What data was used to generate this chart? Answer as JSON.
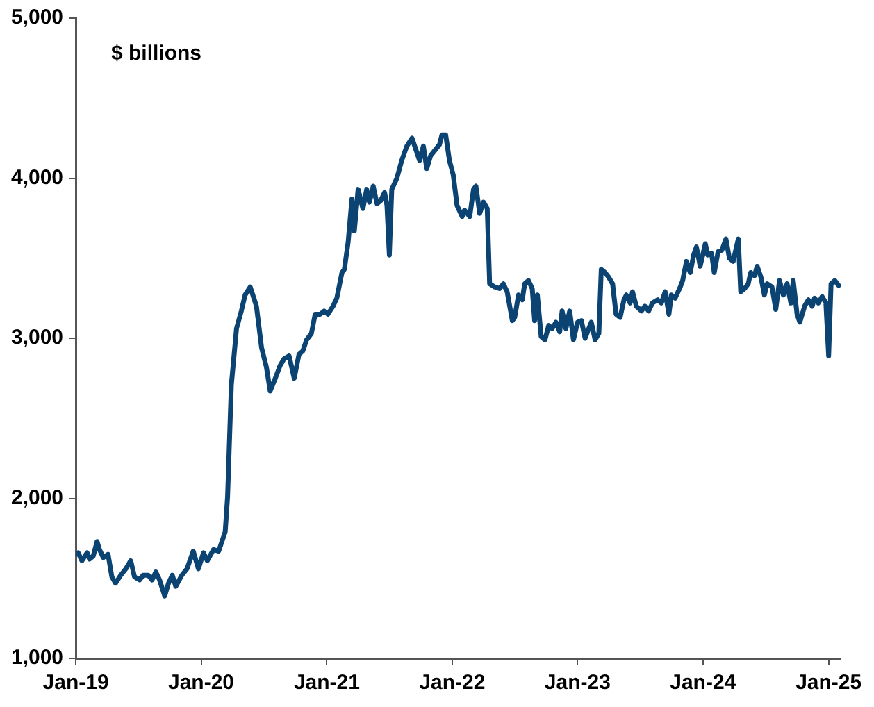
{
  "chart_data": {
    "type": "line",
    "annotations": [
      "$ billions"
    ],
    "x": [
      "2019-01-01",
      "2019-01-08",
      "2019-01-19",
      "2019-02-03",
      "2019-02-10",
      "2019-02-21",
      "2019-03-04",
      "2019-03-11",
      "2019-03-22",
      "2019-04-05",
      "2019-04-16",
      "2019-04-27",
      "2019-05-12",
      "2019-05-27",
      "2019-06-10",
      "2019-06-21",
      "2019-07-06",
      "2019-07-16",
      "2019-07-31",
      "2019-08-11",
      "2019-08-22",
      "2019-09-02",
      "2019-09-17",
      "2019-09-28",
      "2019-10-09",
      "2019-10-19",
      "2019-11-06",
      "2019-11-21",
      "2019-12-09",
      "2019-12-24",
      "2020-01-08",
      "2020-01-19",
      "2020-02-06",
      "2020-02-21",
      "2020-03-11",
      "2020-03-18",
      "2020-03-29",
      "2020-04-13",
      "2020-04-27",
      "2020-05-08",
      "2020-05-23",
      "2020-06-10",
      "2020-06-25",
      "2020-07-09",
      "2020-07-20",
      "2020-08-04",
      "2020-08-18",
      "2020-08-29",
      "2020-09-13",
      "2020-09-28",
      "2020-10-12",
      "2020-10-23",
      "2020-11-03",
      "2020-11-17",
      "2020-11-28",
      "2020-12-13",
      "2020-12-24",
      "2021-01-04",
      "2021-01-19",
      "2021-01-30",
      "2021-02-14",
      "2021-02-21",
      "2021-03-04",
      "2021-03-15",
      "2021-03-22",
      "2021-04-02",
      "2021-04-16",
      "2021-04-27",
      "2021-05-05",
      "2021-05-16",
      "2021-05-27",
      "2021-06-07",
      "2021-06-18",
      "2021-06-25",
      "2021-07-02",
      "2021-07-09",
      "2021-07-24",
      "2021-08-07",
      "2021-08-22",
      "2021-09-06",
      "2021-09-17",
      "2021-09-28",
      "2021-10-09",
      "2021-10-19",
      "2021-10-30",
      "2021-11-14",
      "2021-11-25",
      "2021-12-02",
      "2021-12-13",
      "2021-12-24",
      "2022-01-04",
      "2022-01-15",
      "2022-01-30",
      "2022-02-06",
      "2022-02-21",
      "2022-03-04",
      "2022-03-11",
      "2022-03-22",
      "2022-04-02",
      "2022-04-13",
      "2022-04-20",
      "2022-05-05",
      "2022-05-19",
      "2022-05-30",
      "2022-06-10",
      "2022-06-25",
      "2022-07-02",
      "2022-07-13",
      "2022-07-24",
      "2022-07-31",
      "2022-08-11",
      "2022-08-22",
      "2022-08-29",
      "2022-09-06",
      "2022-09-17",
      "2022-09-28",
      "2022-10-09",
      "2022-10-19",
      "2022-10-30",
      "2022-11-10",
      "2022-11-17",
      "2022-11-28",
      "2022-12-09",
      "2022-12-20",
      "2023-01-01",
      "2023-01-12",
      "2023-01-23",
      "2023-01-30",
      "2023-02-10",
      "2023-02-21",
      "2023-03-04",
      "2023-03-11",
      "2023-03-22",
      "2023-04-02",
      "2023-04-13",
      "2023-04-23",
      "2023-05-05",
      "2023-05-16",
      "2023-05-23",
      "2023-06-03",
      "2023-06-10",
      "2023-06-21",
      "2023-07-06",
      "2023-07-16",
      "2023-07-27",
      "2023-08-07",
      "2023-08-22",
      "2023-09-02",
      "2023-09-13",
      "2023-09-24",
      "2023-10-01",
      "2023-10-12",
      "2023-10-27",
      "2023-11-03",
      "2023-11-14",
      "2023-11-25",
      "2023-12-05",
      "2023-12-13",
      "2023-12-24",
      "2024-01-08",
      "2024-01-15",
      "2024-01-26",
      "2024-02-03",
      "2024-02-14",
      "2024-02-25",
      "2024-03-08",
      "2024-03-18",
      "2024-03-29",
      "2024-04-13",
      "2024-04-20",
      "2024-05-01",
      "2024-05-12",
      "2024-05-19",
      "2024-05-30",
      "2024-06-07",
      "2024-06-18",
      "2024-06-28",
      "2024-07-06",
      "2024-07-20",
      "2024-07-31",
      "2024-08-11",
      "2024-08-22",
      "2024-09-02",
      "2024-09-13",
      "2024-09-20",
      "2024-10-01",
      "2024-10-09",
      "2024-10-23",
      "2024-11-03",
      "2024-11-14",
      "2024-11-21",
      "2024-12-02",
      "2024-12-13",
      "2024-12-24",
      "2025-01-01",
      "2025-01-08",
      "2025-01-19",
      "2025-01-30"
    ],
    "series": [
      {
        "color": "#0b4372",
        "values": [
          1650,
          1660,
          1610,
          1660,
          1620,
          1640,
          1730,
          1680,
          1630,
          1650,
          1510,
          1470,
          1520,
          1560,
          1610,
          1510,
          1490,
          1520,
          1520,
          1490,
          1540,
          1490,
          1390,
          1470,
          1520,
          1450,
          1520,
          1560,
          1670,
          1560,
          1660,
          1610,
          1680,
          1670,
          1790,
          2010,
          2710,
          3060,
          3170,
          3270,
          3320,
          3200,
          2940,
          2820,
          2670,
          2750,
          2830,
          2870,
          2890,
          2750,
          2900,
          2920,
          2990,
          3030,
          3150,
          3150,
          3170,
          3150,
          3200,
          3250,
          3410,
          3430,
          3600,
          3870,
          3670,
          3930,
          3810,
          3930,
          3850,
          3950,
          3840,
          3860,
          3910,
          3830,
          3520,
          3930,
          4000,
          4110,
          4200,
          4250,
          4180,
          4110,
          4200,
          4060,
          4140,
          4180,
          4210,
          4270,
          4270,
          4110,
          4020,
          3830,
          3760,
          3800,
          3760,
          3930,
          3950,
          3780,
          3850,
          3810,
          3340,
          3320,
          3310,
          3340,
          3290,
          3110,
          3130,
          3270,
          3240,
          3340,
          3360,
          3310,
          3110,
          3270,
          3010,
          2990,
          3080,
          3060,
          3100,
          3040,
          3170,
          3060,
          3170,
          2990,
          3100,
          3110,
          3000,
          3040,
          3100,
          2990,
          3030,
          3430,
          3410,
          3380,
          3340,
          3150,
          3130,
          3240,
          3270,
          3220,
          3290,
          3200,
          3170,
          3200,
          3170,
          3220,
          3240,
          3220,
          3290,
          3150,
          3270,
          3250,
          3320,
          3360,
          3480,
          3410,
          3520,
          3570,
          3450,
          3590,
          3520,
          3530,
          3410,
          3540,
          3550,
          3620,
          3500,
          3480,
          3620,
          3290,
          3310,
          3340,
          3410,
          3390,
          3450,
          3380,
          3270,
          3340,
          3320,
          3180,
          3360,
          3270,
          3340,
          3220,
          3360,
          3150,
          3100,
          3200,
          3240,
          3200,
          3250,
          3220,
          3260,
          3220,
          2890,
          3340,
          3360,
          3330
        ]
      }
    ],
    "xlim": [
      "2019-01-01",
      "2025-02-05"
    ],
    "xticks": [
      {
        "value": "2019-01",
        "label": "Jan-19"
      },
      {
        "value": "2020-01",
        "label": "Jan-20"
      },
      {
        "value": "2021-01",
        "label": "Jan-21"
      },
      {
        "value": "2022-01",
        "label": "Jan-22"
      },
      {
        "value": "2023-01",
        "label": "Jan-23"
      },
      {
        "value": "2024-01",
        "label": "Jan-24"
      },
      {
        "value": "2025-01",
        "label": "Jan-25"
      }
    ],
    "ylim": [
      1000,
      5000
    ],
    "yticks": [
      {
        "value": 1000,
        "label": "1,000"
      },
      {
        "value": 2000,
        "label": "2,000"
      },
      {
        "value": 3000,
        "label": "3,000"
      },
      {
        "value": 4000,
        "label": "4,000"
      },
      {
        "value": 5000,
        "label": "5,000"
      }
    ],
    "grid": false,
    "legend": false,
    "marker": "none",
    "line_style": "solid"
  }
}
